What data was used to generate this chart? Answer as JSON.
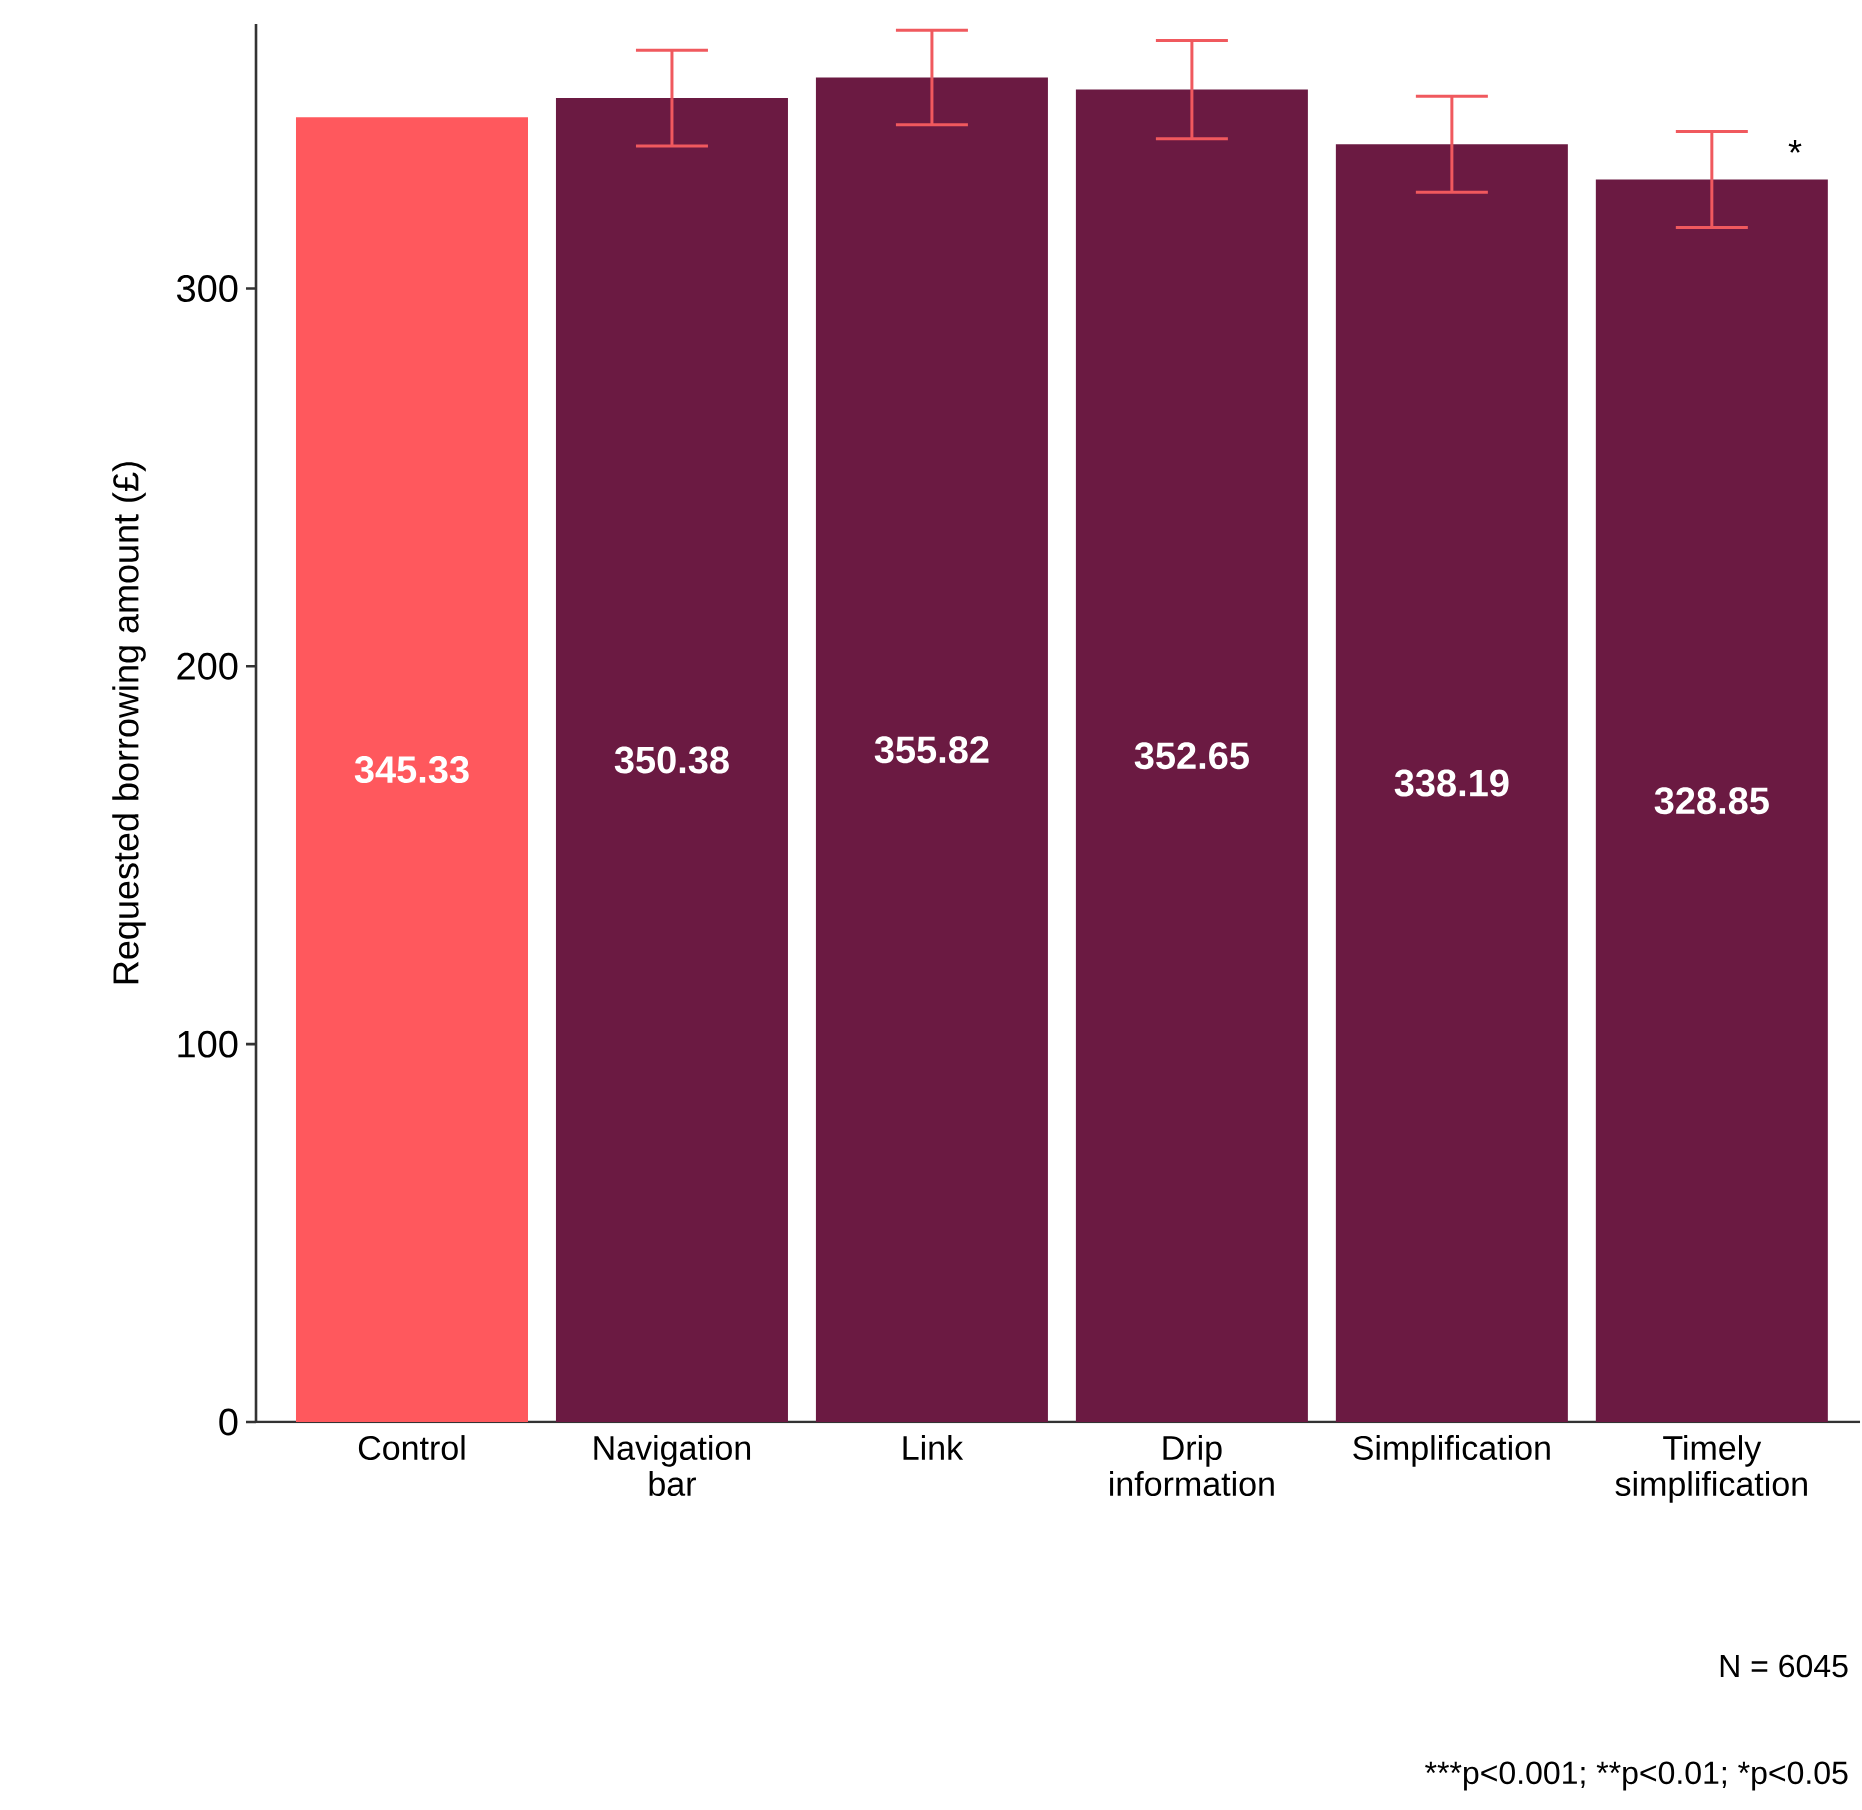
{
  "chart_data": {
    "type": "bar",
    "ylabel": "Requested borrowing amount (£)",
    "categories": [
      "Control",
      "Navigation bar",
      "Link",
      "Drip information",
      "Simplification",
      "Timely simplification"
    ],
    "values": [
      345.33,
      350.38,
      355.82,
      352.65,
      338.19,
      328.85
    ],
    "colors": [
      "#ff585d",
      "#6b1a42",
      "#6b1a42",
      "#6b1a42",
      "#6b1a42",
      "#6b1a42"
    ],
    "errors": [
      null,
      12.7,
      12.5,
      13,
      12.7,
      12.7
    ],
    "ylim": [
      0,
      370
    ],
    "yticks": [
      0,
      100,
      200,
      300
    ],
    "data_labels": true,
    "grid": false,
    "annotations": [
      {
        "text": "*",
        "x": "Timely simplification",
        "y": 336
      },
      "N = 6045",
      "***p<0.001; **p<0.01; *p<0.05"
    ]
  }
}
